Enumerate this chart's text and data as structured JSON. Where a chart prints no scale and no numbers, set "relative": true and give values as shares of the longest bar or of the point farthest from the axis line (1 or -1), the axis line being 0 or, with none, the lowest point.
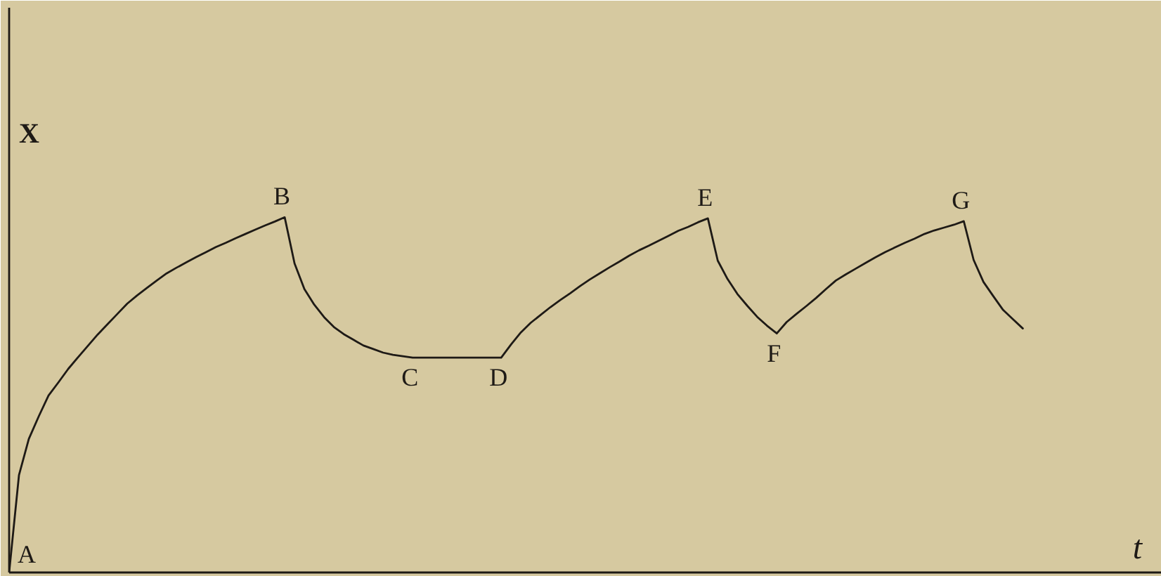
{
  "chart_data": {
    "type": "line",
    "xlabel": "t",
    "ylabel": "X",
    "relative": true,
    "categories": [
      null,
      null,
      null,
      null,
      null,
      null,
      null,
      null,
      null,
      null,
      null,
      null,
      null,
      null,
      null,
      null,
      null,
      null,
      null,
      null,
      null,
      null,
      null,
      null,
      null,
      null,
      null,
      null,
      null,
      null,
      null,
      null,
      null,
      null,
      null,
      null,
      null,
      null,
      null,
      null,
      null,
      null,
      null,
      null,
      null,
      null,
      null,
      null,
      null,
      null,
      null,
      null,
      null,
      null,
      null,
      null,
      null,
      null,
      null,
      null,
      null,
      null,
      null,
      null,
      null,
      null,
      null,
      null,
      null,
      null,
      null,
      null,
      null,
      null,
      null,
      null,
      null,
      null,
      null,
      null,
      null,
      null,
      null,
      null,
      null,
      null,
      null,
      null,
      null,
      null,
      null,
      null,
      null,
      null,
      null,
      null,
      null,
      null,
      null,
      null,
      null,
      null,
      null,
      null
    ],
    "series": [
      {
        "color": "#1e1a16",
        "values": [
          0,
          0.274,
          0.376,
          0.439,
          0.498,
          0.535,
          0.573,
          0.606,
          0.638,
          0.67,
          0.699,
          0.728,
          0.757,
          0.78,
          0.801,
          0.822,
          0.842,
          0.858,
          0.873,
          0.888,
          0.902,
          0.916,
          0.928,
          0.941,
          0.953,
          0.965,
          0.977,
          0.988,
          1,
          0.87,
          0.798,
          0.754,
          0.719,
          0.691,
          0.671,
          0.655,
          0.639,
          0.629,
          0.619,
          0.613,
          0.609,
          0.605,
          0.605,
          0.605,
          0.605,
          0.605,
          0.605,
          0.605,
          0.605,
          0.605,
          0.605,
          0.642,
          0.676,
          0.703,
          0.725,
          0.747,
          0.767,
          0.786,
          0.806,
          0.825,
          0.842,
          0.859,
          0.875,
          0.892,
          0.907,
          0.92,
          0.934,
          0.948,
          0.962,
          0.973,
          0.986,
          0.997,
          0.878,
          0.826,
          0.784,
          0.751,
          0.72,
          0.695,
          0.673,
          0.705,
          0.728,
          0.75,
          0.773,
          0.798,
          0.822,
          0.839,
          0.855,
          0.871,
          0.887,
          0.902,
          0.915,
          0.928,
          0.94,
          0.953,
          0.963,
          0.971,
          0.979,
          0.989,
          0.88,
          0.818,
          0.778,
          0.739,
          0.713,
          0.687
        ]
      }
    ],
    "annotations": [
      "A",
      {
        "text": "B",
        "y": 1
      },
      {
        "text": "C",
        "y": 0.605
      },
      {
        "text": "D",
        "y": 0.605
      },
      {
        "text": "E",
        "y": 0.997
      },
      {
        "text": "F",
        "y": 0.673
      },
      {
        "text": "G",
        "y": 0.989
      }
    ]
  }
}
